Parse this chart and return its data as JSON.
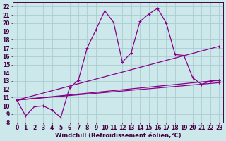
{
  "xlabel": "Windchill (Refroidissement éolien,°C)",
  "bg_color": "#cce8ea",
  "grid_color": "#aacdd0",
  "line_color": "#880088",
  "spine_color": "#440044",
  "xlim": [
    -0.5,
    23.5
  ],
  "ylim": [
    8,
    22.5
  ],
  "xticks": [
    0,
    1,
    2,
    3,
    4,
    5,
    6,
    7,
    8,
    9,
    10,
    11,
    12,
    13,
    14,
    15,
    16,
    17,
    18,
    19,
    20,
    21,
    22,
    23
  ],
  "yticks": [
    8,
    9,
    10,
    11,
    12,
    13,
    14,
    15,
    16,
    17,
    18,
    19,
    20,
    21,
    22
  ],
  "series1_x": [
    0,
    1,
    2,
    3,
    4,
    5,
    6,
    7,
    8,
    9,
    10,
    11,
    12,
    13,
    14,
    15,
    16,
    17,
    18,
    19,
    20,
    21,
    22,
    23
  ],
  "series1_y": [
    10.7,
    8.8,
    9.9,
    10.0,
    9.5,
    8.6,
    12.2,
    13.1,
    17.0,
    19.2,
    21.5,
    20.1,
    15.3,
    16.4,
    20.2,
    21.1,
    21.8,
    20.0,
    16.2,
    16.1,
    13.4,
    12.6,
    13.0,
    13.1
  ],
  "series2_x": [
    0,
    23
  ],
  "series2_y": [
    10.7,
    17.2
  ],
  "series3_x": [
    0,
    23
  ],
  "series3_y": [
    10.7,
    13.1
  ],
  "series4_x": [
    0,
    23
  ],
  "series4_y": [
    10.7,
    12.8
  ],
  "tick_fontsize": 5.5,
  "xlabel_fontsize": 6.0
}
